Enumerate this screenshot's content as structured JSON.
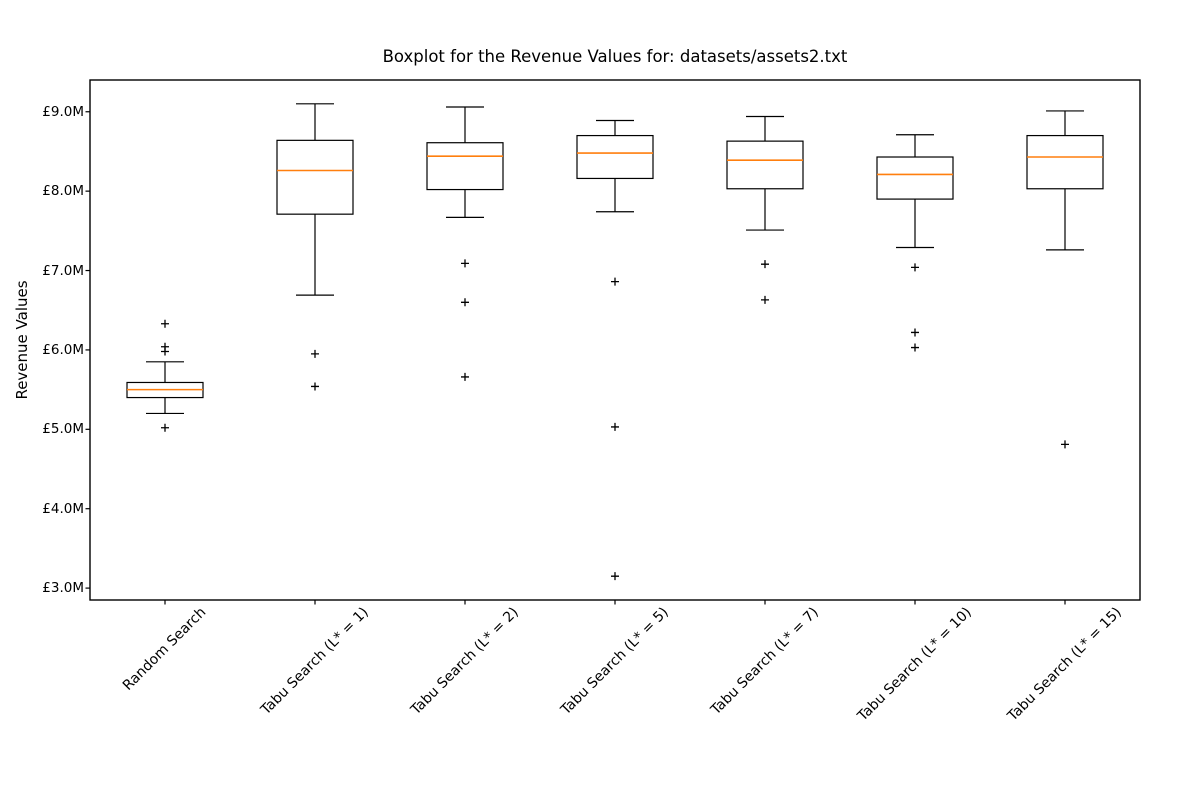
{
  "figure": {
    "title": "Boxplot for the Revenue Values for: datasets/assets2.txt",
    "ylabel": "Revenue Values"
  },
  "chart_data": {
    "type": "boxplot",
    "title": "Boxplot for the Revenue Values for: datasets/assets2.txt",
    "xlabel": "",
    "ylabel": "Revenue Values",
    "y_unit": "millions GBP",
    "ylim": [
      2.85,
      9.4
    ],
    "grid": false,
    "legend": null,
    "y_ticks": [
      {
        "value": 3.0,
        "label": "£3.0M"
      },
      {
        "value": 4.0,
        "label": "£4.0M"
      },
      {
        "value": 5.0,
        "label": "£5.0M"
      },
      {
        "value": 6.0,
        "label": "£6.0M"
      },
      {
        "value": 7.0,
        "label": "£7.0M"
      },
      {
        "value": 8.0,
        "label": "£8.0M"
      },
      {
        "value": 9.0,
        "label": "£9.0M"
      }
    ],
    "categories": [
      "Random Search",
      "Tabu Search (L* = 1)",
      "Tabu Search (L* = 2)",
      "Tabu Search (L* = 5)",
      "Tabu Search (L* = 7)",
      "Tabu Search (L* = 10)",
      "Tabu Search (L* = 15)"
    ],
    "series": [
      {
        "label": "Random Search",
        "whisker_low": 5.2,
        "q1": 5.4,
        "median": 5.5,
        "q3": 5.59,
        "whisker_high": 5.85,
        "outliers": [
          6.33,
          6.04,
          5.98,
          5.02
        ]
      },
      {
        "label": "Tabu Search (L* = 1)",
        "whisker_low": 6.69,
        "q1": 7.71,
        "median": 8.26,
        "q3": 8.64,
        "whisker_high": 9.1,
        "outliers": [
          5.95,
          5.54
        ]
      },
      {
        "label": "Tabu Search (L* = 2)",
        "whisker_low": 7.67,
        "q1": 8.02,
        "median": 8.44,
        "q3": 8.61,
        "whisker_high": 9.06,
        "outliers": [
          7.09,
          6.6,
          5.66
        ]
      },
      {
        "label": "Tabu Search (L* = 5)",
        "whisker_low": 7.74,
        "q1": 8.16,
        "median": 8.48,
        "q3": 8.7,
        "whisker_high": 8.89,
        "outliers": [
          6.86,
          5.03,
          3.15
        ]
      },
      {
        "label": "Tabu Search (L* = 7)",
        "whisker_low": 7.51,
        "q1": 8.03,
        "median": 8.39,
        "q3": 8.63,
        "whisker_high": 8.94,
        "outliers": [
          7.08,
          6.63
        ]
      },
      {
        "label": "Tabu Search (L* = 10)",
        "whisker_low": 7.29,
        "q1": 7.9,
        "median": 8.21,
        "q3": 8.43,
        "whisker_high": 8.71,
        "outliers": [
          7.04,
          6.22,
          6.03
        ]
      },
      {
        "label": "Tabu Search (L* = 15)",
        "whisker_low": 7.26,
        "q1": 8.03,
        "median": 8.43,
        "q3": 8.7,
        "whisker_high": 9.01,
        "outliers": [
          4.81
        ]
      }
    ],
    "flier_marker": "+",
    "colors": {
      "box_line": "#000000",
      "median": "#ff7f0e",
      "flier": "#000000",
      "axis": "#000000",
      "background": "#ffffff"
    }
  }
}
